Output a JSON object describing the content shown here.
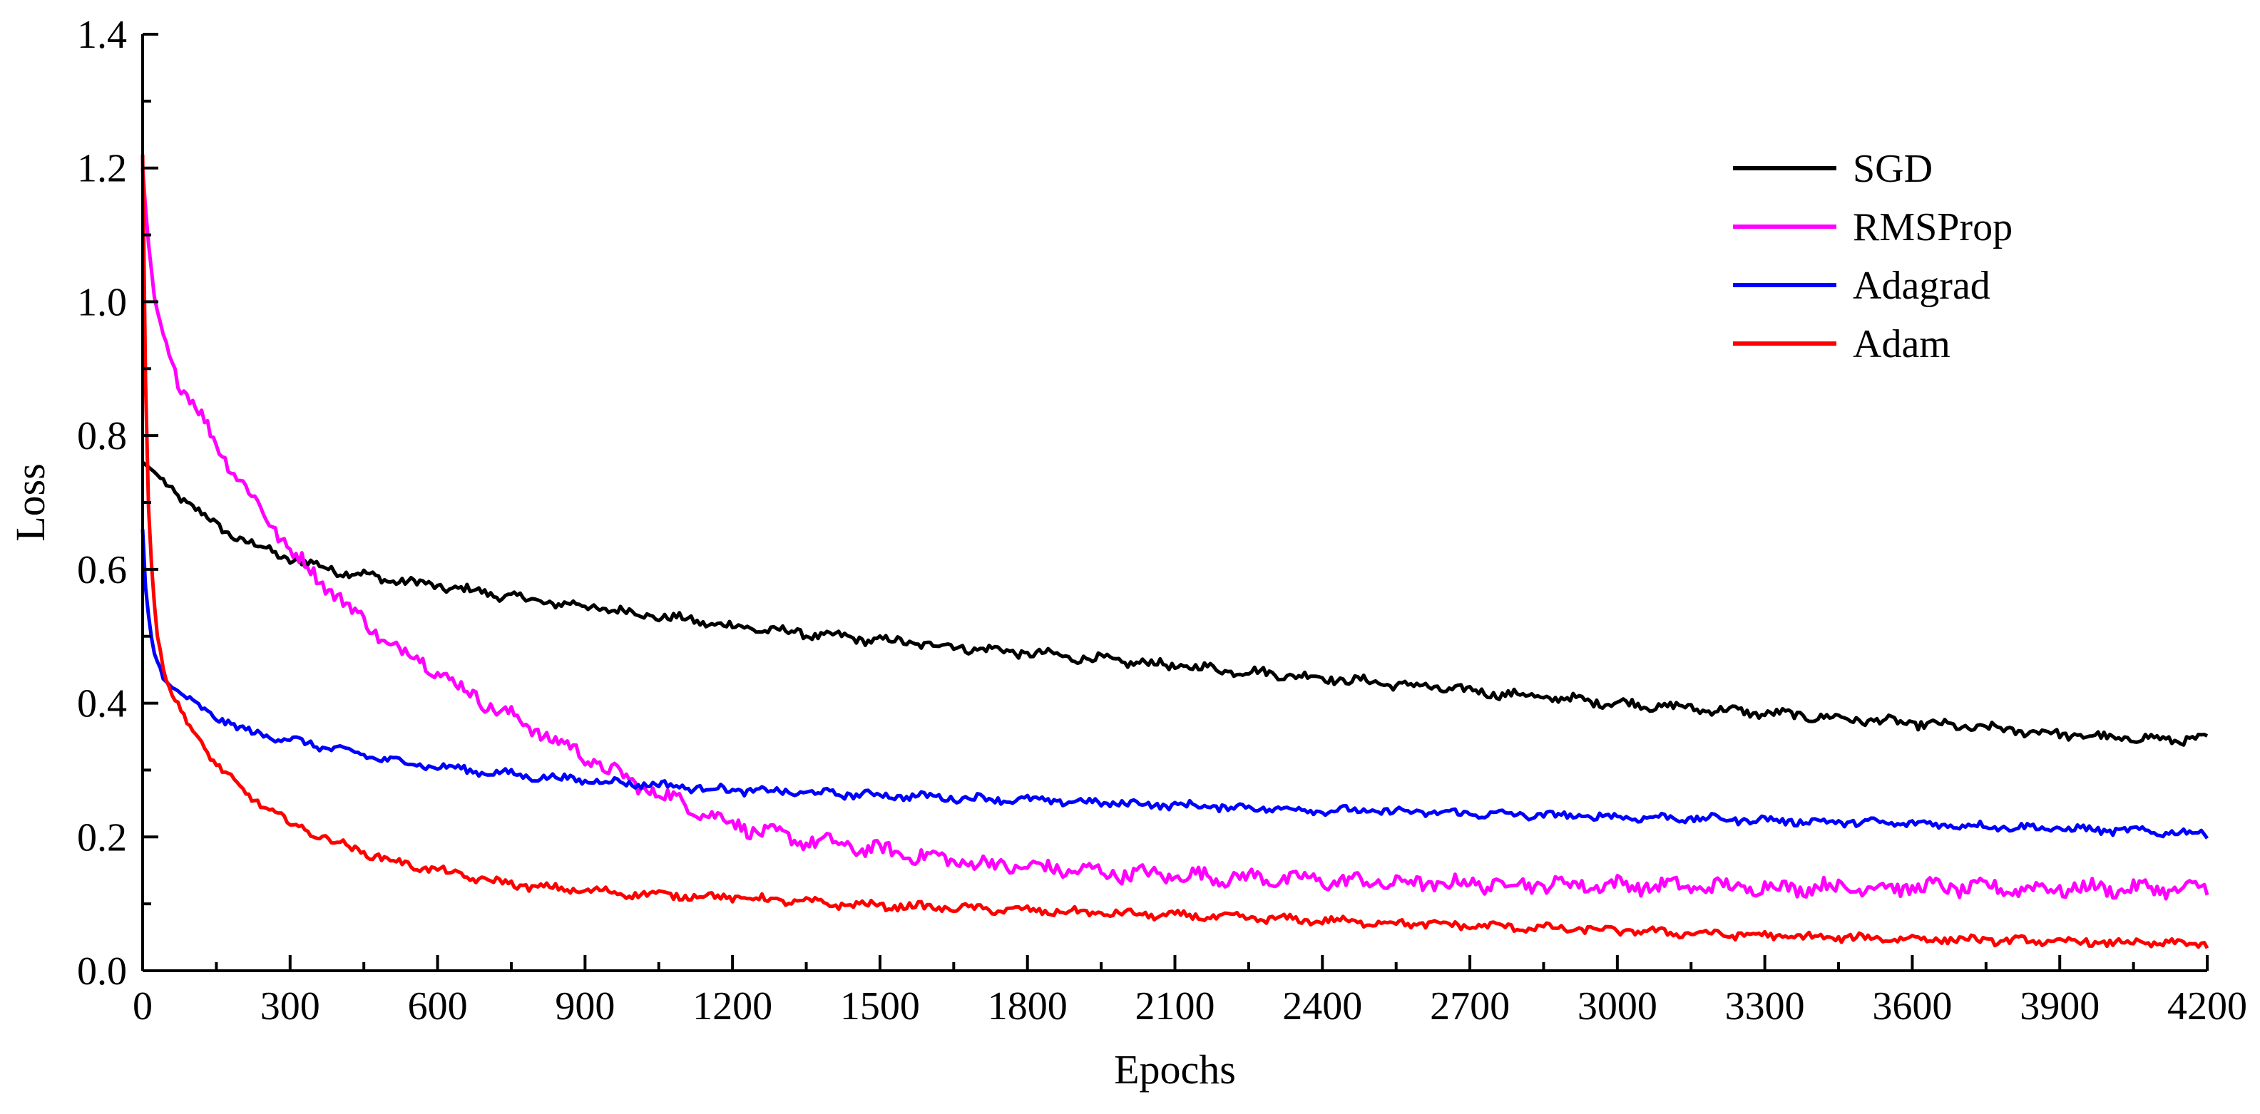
{
  "chart_data": {
    "type": "line",
    "title": "",
    "xlabel": "Epochs",
    "ylabel": "Loss",
    "xlim": [
      0,
      4200
    ],
    "ylim": [
      0.0,
      1.4
    ],
    "xticks": [
      "0",
      "300",
      "600",
      "900",
      "1200",
      "1500",
      "1800",
      "2100",
      "2400",
      "2700",
      "3000",
      "3300",
      "3600",
      "3900",
      "4200"
    ],
    "yticks": [
      "0.0",
      "0.2",
      "0.4",
      "0.6",
      "0.8",
      "1.0",
      "1.2",
      "1.4"
    ],
    "grid": false,
    "legend_position": "top-right",
    "series": [
      {
        "name": "SGD",
        "color": "#000000",
        "x": [
          0,
          25,
          50,
          100,
          150,
          200,
          300,
          400,
          500,
          600,
          700,
          800,
          900,
          1000,
          1200,
          1400,
          1600,
          1800,
          2000,
          2200,
          2400,
          2600,
          2800,
          3000,
          3200,
          3400,
          3600,
          3800,
          4000,
          4200
        ],
        "y": [
          0.76,
          0.745,
          0.725,
          0.695,
          0.665,
          0.645,
          0.615,
          0.598,
          0.585,
          0.575,
          0.565,
          0.553,
          0.545,
          0.535,
          0.515,
          0.5,
          0.488,
          0.475,
          0.462,
          0.45,
          0.438,
          0.425,
          0.412,
          0.4,
          0.39,
          0.38,
          0.37,
          0.36,
          0.348,
          0.345
        ]
      },
      {
        "name": "RMSProp",
        "color": "#ff00ff",
        "x": [
          0,
          10,
          25,
          50,
          75,
          100,
          150,
          200,
          250,
          300,
          350,
          400,
          450,
          500,
          550,
          600,
          650,
          700,
          750,
          800,
          850,
          900,
          950,
          1000,
          1100,
          1200,
          1300,
          1400,
          1500,
          1600,
          1700,
          1800,
          2000,
          2200,
          2400,
          2600,
          2800,
          3000,
          3200,
          3400,
          3600,
          3800,
          4000,
          4200
        ],
        "y": [
          1.2,
          1.1,
          1.0,
          0.93,
          0.88,
          0.85,
          0.79,
          0.73,
          0.68,
          0.63,
          0.59,
          0.56,
          0.52,
          0.49,
          0.47,
          0.45,
          0.42,
          0.4,
          0.38,
          0.36,
          0.34,
          0.32,
          0.3,
          0.28,
          0.25,
          0.22,
          0.2,
          0.19,
          0.18,
          0.17,
          0.16,
          0.155,
          0.145,
          0.14,
          0.135,
          0.13,
          0.13,
          0.128,
          0.125,
          0.125,
          0.125,
          0.123,
          0.123,
          0.122
        ]
      },
      {
        "name": "Adagrad",
        "color": "#0000ff",
        "x": [
          0,
          5,
          15,
          25,
          50,
          75,
          100,
          150,
          200,
          300,
          400,
          500,
          600,
          700,
          800,
          900,
          1000,
          1200,
          1400,
          1600,
          1800,
          2000,
          2200,
          2400,
          2600,
          2800,
          3000,
          3200,
          3400,
          3600,
          3800,
          4000,
          4200
        ],
        "y": [
          0.66,
          0.58,
          0.51,
          0.47,
          0.43,
          0.415,
          0.4,
          0.38,
          0.36,
          0.345,
          0.33,
          0.315,
          0.305,
          0.297,
          0.29,
          0.285,
          0.28,
          0.27,
          0.265,
          0.26,
          0.255,
          0.25,
          0.245,
          0.24,
          0.237,
          0.233,
          0.23,
          0.227,
          0.223,
          0.22,
          0.215,
          0.21,
          0.205
        ]
      },
      {
        "name": "Adam",
        "color": "#ff0000",
        "x": [
          0,
          5,
          10,
          20,
          30,
          50,
          75,
          100,
          150,
          200,
          250,
          300,
          400,
          500,
          600,
          700,
          800,
          900,
          1000,
          1200,
          1400,
          1600,
          1800,
          2000,
          2200,
          2400,
          2600,
          2800,
          3000,
          3200,
          3400,
          3600,
          3800,
          4000,
          4200
        ],
        "y": [
          1.22,
          0.92,
          0.72,
          0.58,
          0.5,
          0.43,
          0.39,
          0.36,
          0.31,
          0.27,
          0.245,
          0.22,
          0.19,
          0.165,
          0.15,
          0.135,
          0.125,
          0.12,
          0.115,
          0.11,
          0.1,
          0.095,
          0.09,
          0.085,
          0.08,
          0.075,
          0.07,
          0.065,
          0.06,
          0.055,
          0.05,
          0.048,
          0.045,
          0.042,
          0.04
        ]
      }
    ]
  }
}
